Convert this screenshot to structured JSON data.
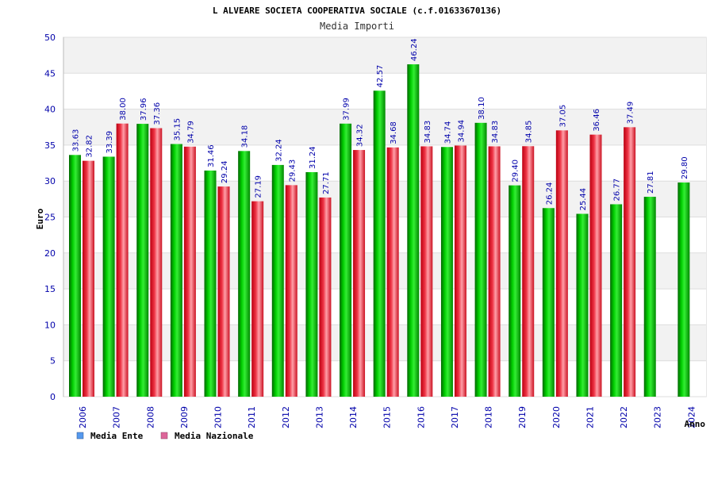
{
  "chart_data": {
    "type": "bar",
    "title": "L ALVEARE SOCIETA COOPERATIVA SOCIALE (c.f.01633670136)",
    "subtitle": "Media Importi",
    "xlabel": "Anno",
    "ylabel": "Euro",
    "ylim": [
      0,
      50
    ],
    "yticks": [
      0,
      5,
      10,
      15,
      20,
      25,
      30,
      35,
      40,
      45,
      50
    ],
    "categories": [
      "2006",
      "2007",
      "2008",
      "2009",
      "2010",
      "2011",
      "2012",
      "2013",
      "2014",
      "2015",
      "2016",
      "2017",
      "2018",
      "2019",
      "2020",
      "2021",
      "2022",
      "2023",
      "2024"
    ],
    "series": [
      {
        "name": "Media Ente",
        "color": "#00aa00",
        "legend_color": "#5599ee",
        "values": [
          33.63,
          33.39,
          37.96,
          35.15,
          31.46,
          34.18,
          32.24,
          31.24,
          37.99,
          42.57,
          46.24,
          34.74,
          38.1,
          29.4,
          26.24,
          25.44,
          26.77,
          27.81,
          29.8
        ],
        "labels": [
          "33.63",
          "33.39",
          "37.96",
          "35.15",
          "31.46",
          "34.18",
          "32.24",
          "31.24",
          "37.99",
          "42.57",
          "46.24",
          "34.74",
          "38.10",
          "29.40",
          "26.24",
          "25.44",
          "26.77",
          "27.81",
          "29.80"
        ]
      },
      {
        "name": "Media Nazionale",
        "color": "#ee2233",
        "legend_color": "#dd6699",
        "values": [
          32.82,
          38.0,
          37.36,
          34.79,
          29.24,
          27.19,
          29.43,
          27.71,
          34.32,
          34.68,
          34.83,
          34.94,
          34.83,
          34.85,
          37.05,
          36.46,
          37.49,
          null,
          null
        ],
        "labels": [
          "32.82",
          "38.00",
          "37.36",
          "34.79",
          "29.24",
          "27.19",
          "29.43",
          "27.71",
          "34.32",
          "34.68",
          "34.83",
          "34.94",
          "34.83",
          "34.85",
          "37.05",
          "36.46",
          "37.49",
          null,
          null
        ]
      }
    ],
    "grid": true,
    "legend_position": "bottom-left"
  }
}
